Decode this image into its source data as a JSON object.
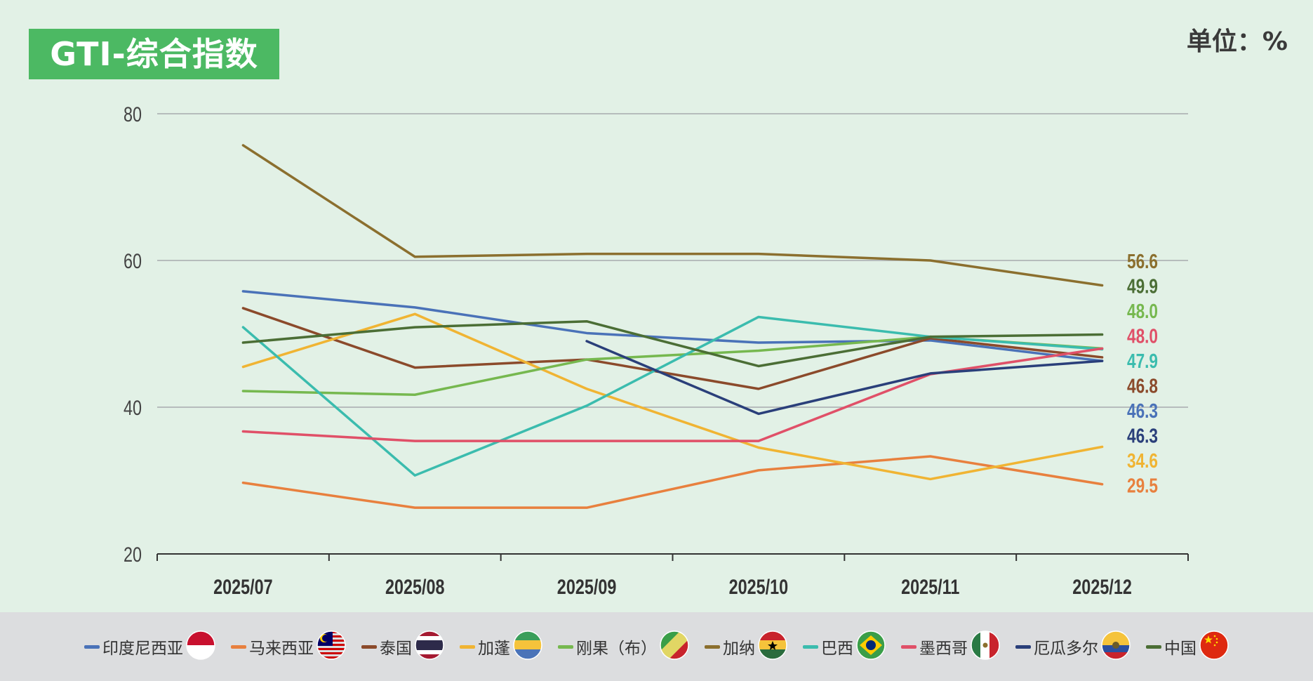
{
  "title": "GTI-综合指数",
  "unit": "单位：%",
  "chart_data": {
    "type": "line",
    "categories": [
      "2025/07",
      "2025/08",
      "2025/09",
      "2025/10",
      "2025/11",
      "2025/12"
    ],
    "ylim": [
      20,
      80
    ],
    "yticks": [
      20,
      40,
      60,
      80
    ],
    "grid": true,
    "legend_position": "bottom",
    "series": [
      {
        "name": "印度尼西亚",
        "color": "#4a72b8",
        "flag": "indonesia-flag-icon",
        "values": [
          55.8,
          53.6,
          50.1,
          48.8,
          49.1,
          46.3
        ],
        "end_label": "46.3"
      },
      {
        "name": "马来西亚",
        "color": "#e8803e",
        "flag": "malaysia-flag-icon",
        "values": [
          29.7,
          26.3,
          26.3,
          31.4,
          33.3,
          29.5
        ],
        "end_label": "29.5"
      },
      {
        "name": "泰国",
        "color": "#8b4a2b",
        "flag": "thailand-flag-icon",
        "values": [
          53.5,
          45.4,
          46.5,
          42.5,
          49.4,
          46.8
        ],
        "end_label": "46.8"
      },
      {
        "name": "加蓬",
        "color": "#f0b433",
        "flag": "gabon-flag-icon",
        "values": [
          45.5,
          52.7,
          42.5,
          34.5,
          30.2,
          34.6
        ],
        "end_label": "34.6"
      },
      {
        "name": "刚果（布）",
        "color": "#76b84f",
        "flag": "congo-flag-icon",
        "values": [
          42.2,
          41.7,
          46.5,
          47.7,
          49.6,
          48.0
        ],
        "end_label": "48.0"
      },
      {
        "name": "加纳",
        "color": "#8b6f2e",
        "flag": "ghana-flag-icon",
        "values": [
          75.7,
          60.5,
          60.9,
          60.9,
          60.0,
          56.6
        ],
        "end_label": "56.6"
      },
      {
        "name": "巴西",
        "color": "#3bbcae",
        "flag": "brazil-flag-icon",
        "values": [
          50.9,
          30.7,
          40.2,
          52.3,
          49.6,
          47.9
        ],
        "end_label": "47.9"
      },
      {
        "name": "墨西哥",
        "color": "#e05068",
        "flag": "mexico-flag-icon",
        "values": [
          36.7,
          35.4,
          35.4,
          35.4,
          44.5,
          48.0
        ],
        "end_label": "48.0"
      },
      {
        "name": "厄瓜多尔",
        "color": "#2a3f7a",
        "flag": "ecuador-flag-icon",
        "values": [
          null,
          null,
          49.0,
          39.1,
          44.6,
          46.3
        ],
        "end_label": "46.3"
      },
      {
        "name": "中国",
        "color": "#4b6e35",
        "flag": "china-flag-icon",
        "values": [
          48.8,
          50.9,
          51.7,
          45.6,
          49.6,
          49.9
        ],
        "end_label": "49.9"
      }
    ],
    "end_label_order": [
      5,
      9,
      4,
      7,
      6,
      2,
      0,
      8,
      3,
      1
    ]
  }
}
